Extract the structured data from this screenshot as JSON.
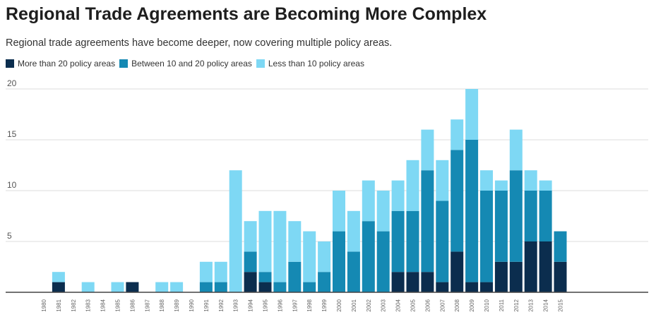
{
  "title": "Regional Trade Agreements are Becoming More Complex",
  "subtitle": "Regional trade agreements have become deeper, now covering multiple policy areas.",
  "colors": {
    "more_than_20": "#0b2d4e",
    "between_10_20": "#1589b3",
    "less_than_10": "#7ed8f4",
    "grid": "#dddddd",
    "axis": "#444444"
  },
  "chart_data": {
    "type": "bar",
    "stacked": true,
    "title": "Regional Trade Agreements are Becoming More Complex",
    "subtitle": "Regional trade agreements have become deeper, now covering multiple policy areas.",
    "xlabel": "",
    "ylabel": "",
    "ylim": [
      0,
      20
    ],
    "yticks": [
      0,
      5,
      10,
      15,
      20
    ],
    "ytick_labels": [
      "",
      "5",
      "10",
      "15",
      "20"
    ],
    "grid": true,
    "legend_position": "top-left",
    "categories": [
      "1980",
      "1981",
      "1982",
      "1983",
      "1984",
      "1985",
      "1986",
      "1987",
      "1988",
      "1989",
      "1990",
      "1991",
      "1992",
      "1993",
      "1994",
      "1995",
      "1996",
      "1997",
      "1998",
      "1999",
      "2000",
      "2001",
      "2002",
      "2003",
      "2004",
      "2005",
      "2006",
      "2007",
      "2008",
      "2009",
      "2010",
      "2011",
      "2012",
      "2013",
      "2014",
      "2015"
    ],
    "series": [
      {
        "name": "More than 20 policy areas",
        "color_key": "more_than_20",
        "values": [
          0,
          1,
          0,
          0,
          0,
          0,
          1,
          0,
          0,
          0,
          0,
          0,
          0,
          0,
          2,
          1,
          0,
          0,
          0,
          0,
          0,
          0,
          0,
          0,
          2,
          2,
          2,
          1,
          4,
          1,
          1,
          3,
          3,
          5,
          5,
          3
        ]
      },
      {
        "name": "Between 10 and 20 policy areas",
        "color_key": "between_10_20",
        "values": [
          0,
          0,
          0,
          0,
          0,
          0,
          0,
          0,
          0,
          0,
          0,
          1,
          1,
          0,
          2,
          1,
          1,
          3,
          1,
          2,
          6,
          4,
          7,
          6,
          6,
          6,
          10,
          8,
          10,
          14,
          9,
          7,
          9,
          5,
          5,
          3
        ]
      },
      {
        "name": "Less than 10 policy areas",
        "color_key": "less_than_10",
        "values": [
          0,
          1,
          0,
          1,
          0,
          1,
          0,
          0,
          1,
          1,
          0,
          2,
          2,
          12,
          3,
          6,
          7,
          4,
          5,
          3,
          4,
          4,
          4,
          4,
          3,
          5,
          4,
          4,
          3,
          5,
          2,
          1,
          4,
          2,
          1,
          0
        ]
      }
    ]
  }
}
